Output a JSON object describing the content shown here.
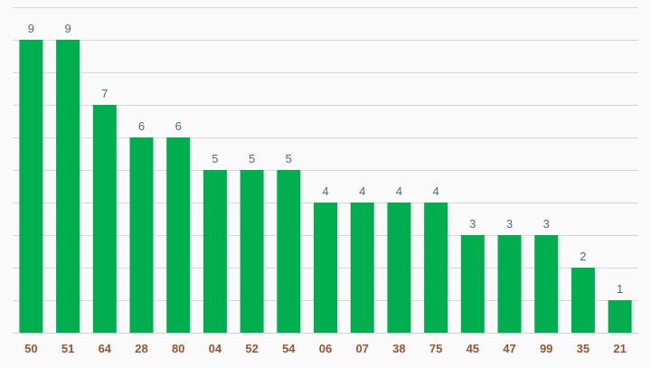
{
  "chart_data": {
    "type": "bar",
    "categories": [
      "50",
      "51",
      "64",
      "28",
      "80",
      "04",
      "52",
      "54",
      "06",
      "07",
      "38",
      "75",
      "45",
      "47",
      "99",
      "35",
      "21"
    ],
    "values": [
      9,
      9,
      7,
      6,
      6,
      5,
      5,
      5,
      4,
      4,
      4,
      4,
      3,
      3,
      3,
      2,
      1
    ],
    "ylim": [
      0,
      10
    ],
    "grid": true,
    "legend": "none",
    "colors": {
      "bar": "#00ad4f",
      "value_label": "#4a6d8c",
      "category_label": "#a0522d",
      "grid": "#d9d9d9",
      "background": "#fafafa"
    }
  }
}
